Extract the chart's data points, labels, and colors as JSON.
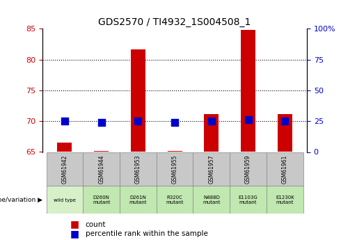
{
  "title": "GDS2570 / TI4932_1S004508_1",
  "samples": [
    "GSM61942",
    "GSM61944",
    "GSM61953",
    "GSM61955",
    "GSM61957",
    "GSM61959",
    "GSM61961"
  ],
  "genotype_labels": [
    "wild type",
    "D260N\nmutant",
    "D261N\nmutant",
    "R320C\nmutant",
    "N488D\nmutant",
    "E1103G\nmutant",
    "E1230K\nmutant"
  ],
  "genotype_colors": [
    "#d0f0c0",
    "#c8f0c0",
    "#c8f0c0",
    "#c8f0c0",
    "#c8f0c0",
    "#c8f0c0",
    "#c8f0c0"
  ],
  "count_values": [
    66.5,
    65.2,
    81.7,
    65.2,
    71.2,
    84.8,
    71.2
  ],
  "percentile_values": [
    25,
    24,
    25,
    24,
    25,
    26,
    25
  ],
  "ylim_left": [
    65,
    85
  ],
  "ylim_right": [
    0,
    100
  ],
  "yticks_left": [
    65,
    70,
    75,
    80,
    85
  ],
  "yticks_right": [
    0,
    25,
    50,
    75,
    100
  ],
  "ytick_labels_right": [
    "0",
    "25",
    "50",
    "75",
    "100%"
  ],
  "bar_color": "#cc0000",
  "dot_color": "#0000cc",
  "grid_color": "#000000",
  "bg_color": "#ffffff",
  "plot_bg_color": "#ffffff",
  "left_tick_color": "#cc0000",
  "right_tick_color": "#0000cc",
  "bar_width": 0.4,
  "dot_size": 60,
  "legend_count_label": "count",
  "legend_pct_label": "percentile rank within the sample",
  "genotype_header": "genotype/variation"
}
